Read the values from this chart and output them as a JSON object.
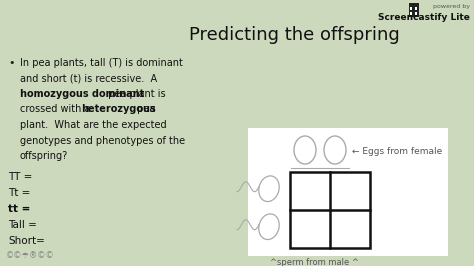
{
  "title": "Predicting the offspring",
  "bg_color": "#cdd9bc",
  "title_color": "#111111",
  "title_fontsize": 13,
  "body_fontsize": 7.0,
  "label_fontsize": 7.5,
  "watermark": "Screencastify Lite",
  "watermark_sub": "powered by",
  "punnett_label_top": "← Eggs from female",
  "punnett_label_bottom": "^sperm from male ^",
  "labels": [
    "TT =",
    "Tt =",
    "tt =",
    "Tall =",
    "Short="
  ],
  "bullet_lines": [
    [
      [
        "In pea plants, tall (T) is dominant",
        false
      ]
    ],
    [
      [
        "and short (t) is recessive.  A",
        false
      ]
    ],
    [
      [
        "homozygous dominant",
        true
      ],
      [
        " pea plant is",
        false
      ]
    ],
    [
      [
        "crossed with a ",
        false
      ],
      [
        "heterozygous",
        true
      ],
      [
        " pea",
        false
      ]
    ],
    [
      [
        "plant.  What are the expected",
        false
      ]
    ],
    [
      [
        "genotypes and phenotypes of the",
        false
      ]
    ],
    [
      [
        "offspring?",
        false
      ]
    ]
  ]
}
